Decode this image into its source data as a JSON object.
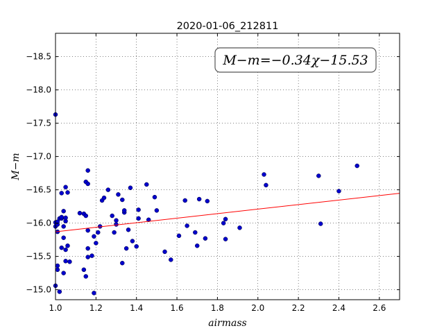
{
  "chart_data": {
    "type": "scatter",
    "title": "2020-01-06_212811",
    "xlabel": "airmass",
    "ylabel": "M−m",
    "xlim": [
      1.0,
      2.7
    ],
    "ylim": [
      -18.85,
      -14.85
    ],
    "y_inverted": true,
    "grid": true,
    "xticks": [
      1.0,
      1.2,
      1.4,
      1.6,
      1.8,
      2.0,
      2.2,
      2.4,
      2.6
    ],
    "xtick_labels": [
      "1.0",
      "1.2",
      "1.4",
      "1.6",
      "1.8",
      "2.0",
      "2.2",
      "2.4",
      "2.6"
    ],
    "yticks": [
      -15.0,
      -15.5,
      -16.0,
      -16.5,
      -17.0,
      -17.5,
      -18.0,
      -18.5
    ],
    "ytick_labels": [
      "−15.0",
      "−15.5",
      "−16.0",
      "−16.5",
      "−17.0",
      "−17.5",
      "−18.0",
      "−18.5"
    ],
    "annotation": "M−m=−0.34χ−15.53",
    "fit": {
      "slope": -0.34,
      "intercept": -15.53,
      "color": "#ff0000"
    },
    "point_color": "#0000cc",
    "points": [
      [
        1.0,
        -15.06
      ],
      [
        1.0,
        -17.63
      ],
      [
        1.0,
        -15.95
      ],
      [
        1.0,
        -16.01
      ],
      [
        1.01,
        -15.3
      ],
      [
        1.01,
        -15.36
      ],
      [
        1.01,
        -15.87
      ],
      [
        1.01,
        -15.98
      ],
      [
        1.01,
        -16.02
      ],
      [
        1.02,
        -14.97
      ],
      [
        1.02,
        -16.07
      ],
      [
        1.03,
        -16.45
      ],
      [
        1.03,
        -16.07
      ],
      [
        1.03,
        -16.09
      ],
      [
        1.03,
        -15.63
      ],
      [
        1.04,
        -15.25
      ],
      [
        1.04,
        -15.78
      ],
      [
        1.04,
        -15.95
      ],
      [
        1.04,
        -16.18
      ],
      [
        1.05,
        -15.43
      ],
      [
        1.05,
        -15.6
      ],
      [
        1.05,
        -16.03
      ],
      [
        1.05,
        -16.08
      ],
      [
        1.05,
        -16.54
      ],
      [
        1.06,
        -16.46
      ],
      [
        1.06,
        -15.66
      ],
      [
        1.07,
        -15.42
      ],
      [
        1.12,
        -16.15
      ],
      [
        1.14,
        -16.14
      ],
      [
        1.14,
        -15.3
      ],
      [
        1.15,
        -15.2
      ],
      [
        1.15,
        -16.11
      ],
      [
        1.15,
        -16.62
      ],
      [
        1.16,
        -15.62
      ],
      [
        1.16,
        -15.89
      ],
      [
        1.16,
        -16.59
      ],
      [
        1.16,
        -16.79
      ],
      [
        1.16,
        -15.49
      ],
      [
        1.18,
        -15.51
      ],
      [
        1.19,
        -14.95
      ],
      [
        1.19,
        -15.8
      ],
      [
        1.2,
        -15.7
      ],
      [
        1.21,
        -15.86
      ],
      [
        1.22,
        -15.95
      ],
      [
        1.23,
        -16.34
      ],
      [
        1.24,
        -16.38
      ],
      [
        1.26,
        -16.5
      ],
      [
        1.28,
        -16.11
      ],
      [
        1.29,
        -15.86
      ],
      [
        1.3,
        -15.98
      ],
      [
        1.3,
        -16.04
      ],
      [
        1.31,
        -16.43
      ],
      [
        1.33,
        -16.35
      ],
      [
        1.33,
        -15.4
      ],
      [
        1.34,
        -16.16
      ],
      [
        1.34,
        -16.19
      ],
      [
        1.35,
        -15.62
      ],
      [
        1.36,
        -15.9
      ],
      [
        1.37,
        -16.53
      ],
      [
        1.38,
        -15.73
      ],
      [
        1.4,
        -15.65
      ],
      [
        1.41,
        -16.07
      ],
      [
        1.41,
        -16.2
      ],
      [
        1.45,
        -16.58
      ],
      [
        1.46,
        -16.05
      ],
      [
        1.49,
        -16.39
      ],
      [
        1.5,
        -16.19
      ],
      [
        1.54,
        -15.57
      ],
      [
        1.57,
        -15.45
      ],
      [
        1.61,
        -15.81
      ],
      [
        1.64,
        -16.34
      ],
      [
        1.65,
        -15.96
      ],
      [
        1.69,
        -15.86
      ],
      [
        1.7,
        -15.66
      ],
      [
        1.71,
        -16.36
      ],
      [
        1.74,
        -15.77
      ],
      [
        1.75,
        -16.33
      ],
      [
        1.83,
        -16.0
      ],
      [
        1.84,
        -15.76
      ],
      [
        1.84,
        -16.06
      ],
      [
        1.91,
        -15.93
      ],
      [
        2.03,
        -16.73
      ],
      [
        2.04,
        -16.57
      ],
      [
        2.3,
        -16.71
      ],
      [
        2.31,
        -15.99
      ],
      [
        2.4,
        -16.48
      ],
      [
        2.49,
        -16.86
      ]
    ]
  }
}
